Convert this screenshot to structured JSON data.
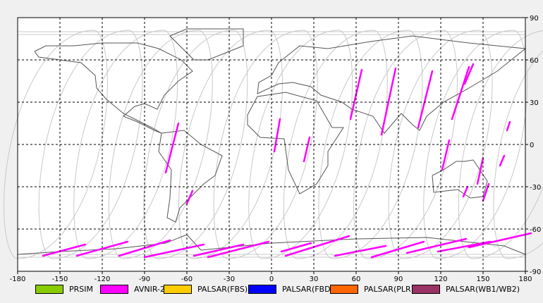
{
  "map": {
    "x_ticks": [
      "-180",
      "-150",
      "-120",
      "-90",
      "-60",
      "-30",
      "0",
      "30",
      "60",
      "90",
      "120",
      "150",
      "180"
    ],
    "y_ticks": [
      "90",
      "60",
      "30",
      "0",
      "-30",
      "-60",
      "-90"
    ],
    "lon_range": [
      -180,
      180
    ],
    "lat_range": [
      -90,
      90
    ],
    "grid": "dashed"
  },
  "legend": [
    {
      "label": "PRSIM",
      "color": "#88cc00"
    },
    {
      "label": "AVNIR-2",
      "color": "#ff00ff"
    },
    {
      "label": "PALSAR(FBS)",
      "color": "#ffcc00"
    },
    {
      "label": "PALSAR(FBD)",
      "color": "#0000ff"
    },
    {
      "label": "PALSAR(PLR)",
      "color": "#ff6600"
    },
    {
      "label": "PALSAR(WB1/WB2)",
      "color": "#993366"
    }
  ],
  "colors": {
    "orbit": "#c8c8c8",
    "coast": "#555555",
    "acquisition": "#ff00ff",
    "grid": "#000000"
  },
  "acquisition_segments": [
    {
      "lon": [
        -66,
        -75
      ],
      "lat": [
        15,
        -20
      ]
    },
    {
      "lon": [
        -56,
        -60
      ],
      "lat": [
        -33,
        -42
      ]
    },
    {
      "lon": [
        6,
        2
      ],
      "lat": [
        18,
        -5
      ]
    },
    {
      "lon": [
        27,
        23
      ],
      "lat": [
        5,
        -12
      ]
    },
    {
      "lon": [
        64,
        56
      ],
      "lat": [
        53,
        18
      ]
    },
    {
      "lon": [
        88,
        78
      ],
      "lat": [
        54,
        7
      ]
    },
    {
      "lon": [
        114,
        104
      ],
      "lat": [
        52,
        12
      ]
    },
    {
      "lon": [
        140,
        128
      ],
      "lat": [
        55,
        18
      ]
    },
    {
      "lon": [
        143,
        137
      ],
      "lat": [
        57,
        43
      ]
    },
    {
      "lon": [
        126,
        121
      ],
      "lat": [
        3,
        -18
      ]
    },
    {
      "lon": [
        150,
        146
      ],
      "lat": [
        -10,
        -28
      ]
    },
    {
      "lon": [
        165,
        162
      ],
      "lat": [
        -8,
        -15
      ]
    },
    {
      "lon": [
        169,
        167
      ],
      "lat": [
        16,
        10
      ]
    },
    {
      "lon": [
        139,
        136
      ],
      "lat": [
        -30,
        -37
      ]
    },
    {
      "lon": [
        154,
        150
      ],
      "lat": [
        -28,
        -40
      ]
    },
    {
      "lon": [
        -132,
        -162
      ],
      "lat": [
        -71,
        -79
      ]
    },
    {
      "lon": [
        -102,
        -138
      ],
      "lat": [
        -69,
        -79
      ]
    },
    {
      "lon": [
        -72,
        -108
      ],
      "lat": [
        -68,
        -79
      ]
    },
    {
      "lon": [
        -48,
        -90
      ],
      "lat": [
        -71,
        -80
      ]
    },
    {
      "lon": [
        -20,
        -55
      ],
      "lat": [
        -71,
        -79
      ]
    },
    {
      "lon": [
        -2,
        -45
      ],
      "lat": [
        -69,
        -80
      ]
    },
    {
      "lon": [
        28,
        7
      ],
      "lat": [
        -70,
        -76
      ]
    },
    {
      "lon": [
        55,
        10
      ],
      "lat": [
        -65,
        -79
      ]
    },
    {
      "lon": [
        81,
        45
      ],
      "lat": [
        -72,
        -79
      ]
    },
    {
      "lon": [
        108,
        71
      ],
      "lat": [
        -69,
        -80
      ]
    },
    {
      "lon": [
        138,
        96
      ],
      "lat": [
        -67,
        -77
      ]
    },
    {
      "lon": [
        155,
        118
      ],
      "lat": [
        -69,
        -76
      ]
    },
    {
      "lon": [
        184,
        140
      ],
      "lat": [
        -63,
        -73
      ]
    }
  ]
}
